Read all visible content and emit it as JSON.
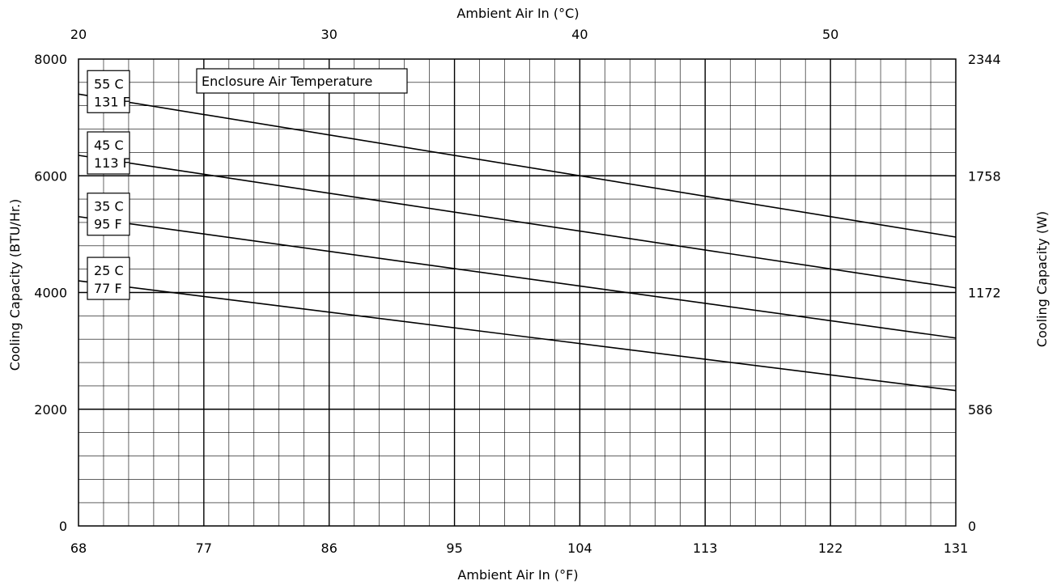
{
  "chart_data": {
    "type": "line",
    "title": "",
    "xlabel": "Ambient Air In (°F)",
    "x2label": "Ambient Air In (°C)",
    "ylabel": "Cooling Capacity (BTU/Hr.)",
    "y2label": "Cooling Capacity (W)",
    "xlim": [
      68,
      131
    ],
    "ylim": [
      0,
      8000
    ],
    "x_ticks": [
      "68",
      "77",
      "86",
      "95",
      "104",
      "113",
      "122",
      "131"
    ],
    "x2_ticks": [
      {
        "label": "20",
        "f": 68
      },
      {
        "label": "30",
        "f": 86
      },
      {
        "label": "40",
        "f": 104
      },
      {
        "label": "50",
        "f": 122
      }
    ],
    "y_ticks": [
      "0",
      "2000",
      "4000",
      "6000",
      "8000"
    ],
    "y2_ticks": [
      "0",
      "586",
      "1172",
      "1758",
      "2344"
    ],
    "grid": true,
    "legend_title": "Enclosure Air Temperature",
    "series": [
      {
        "name": "55 C",
        "name2": "131 F",
        "x": [
          68,
          131
        ],
        "y": [
          7400,
          4950
        ]
      },
      {
        "name": "45 C",
        "name2": "113 F",
        "x": [
          68,
          131
        ],
        "y": [
          6350,
          4080
        ]
      },
      {
        "name": "35 C",
        "name2": "95 F",
        "x": [
          68,
          131
        ],
        "y": [
          5300,
          3220
        ]
      },
      {
        "name": "25 C",
        "name2": "77 F",
        "x": [
          68,
          131
        ],
        "y": [
          4200,
          2320
        ]
      }
    ]
  }
}
